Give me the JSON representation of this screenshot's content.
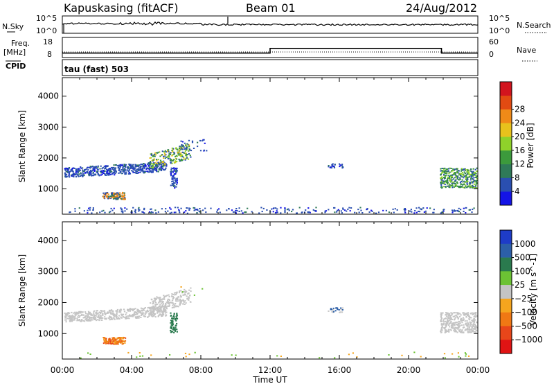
{
  "header": {
    "station": "Kapuskasing (fitACF)",
    "beam": "Beam 01",
    "date": "24/Aug/2012"
  },
  "strip_labels": {
    "nsky": "N.Sky",
    "nsearch": "N.Search",
    "freq": "Freq.",
    "freq_unit": "[MHz]",
    "nave": "Nave",
    "cpid": "CPID",
    "nsky_ticks": [
      "10^5",
      "10^0"
    ],
    "nsearch_ticks": [
      "10^5",
      "10^0"
    ],
    "freq_ticks": [
      "18",
      "8"
    ],
    "nave_ticks": [
      "60",
      "0"
    ]
  },
  "cpid_text": "tau (fast) 503",
  "chart_data": [
    {
      "type": "heatmap",
      "panel": "power",
      "ylabel": "Slant Range [km]",
      "xlabel": "",
      "colorbar_label": "Power [dB]",
      "colorbar_ticks": [
        "4",
        "8",
        "12",
        "16",
        "20",
        "24",
        "28"
      ],
      "colorbar_colors": [
        "#1414e6",
        "#2a4fb0",
        "#2f7a58",
        "#3c9a3c",
        "#8fd22a",
        "#e8c21c",
        "#f08a18",
        "#e24a12",
        "#d2141e"
      ],
      "ylim": [
        180,
        4600
      ],
      "yticks": [
        1000,
        2000,
        3000,
        4000
      ],
      "xlim": [
        0,
        24
      ],
      "xticks": [
        "00:00",
        "04:00",
        "08:00",
        "12:00",
        "16:00",
        "20:00",
        "00:00"
      ]
    },
    {
      "type": "heatmap",
      "panel": "velocity",
      "ylabel": "Slant Range [km]",
      "xlabel": "Time UT",
      "colorbar_label": "Velocity [m s^-1]",
      "colorbar_ticks": [
        "1000",
        "500",
        "100",
        "25",
        "−25",
        "−100",
        "−500",
        "−1000"
      ],
      "colorbar_colors": [
        "#1e3cc8",
        "#2c5fa8",
        "#2a7a4e",
        "#6cc234",
        "#c4c4c4",
        "#f5a51e",
        "#f07814",
        "#e8461a",
        "#e01414"
      ],
      "ylim": [
        180,
        4600
      ],
      "yticks": [
        1000,
        2000,
        3000,
        4000
      ],
      "xlim": [
        0,
        24
      ],
      "xticks": [
        "00:00",
        "04:00",
        "08:00",
        "12:00",
        "16:00",
        "20:00",
        "00:00"
      ]
    }
  ],
  "time_series": {
    "freq_mhz": [
      [
        0,
        10.0
      ],
      [
        11.95,
        10.0
      ],
      [
        12.0,
        12.5
      ],
      [
        21.85,
        12.5
      ],
      [
        21.9,
        10.0
      ],
      [
        24,
        10.0
      ]
    ]
  }
}
